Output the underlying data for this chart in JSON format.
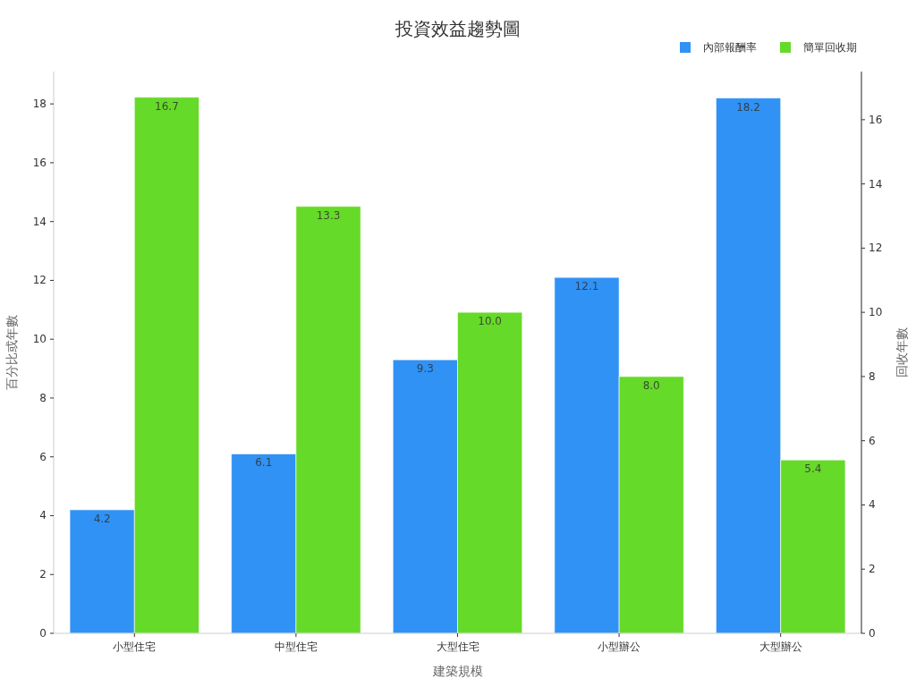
{
  "chart_data": {
    "type": "bar",
    "title": "投資效益趨勢圖",
    "xlabel": "建築規模",
    "ylabel": "百分比或年數",
    "y2label": "回收年數",
    "categories": [
      "小型住宅",
      "中型住宅",
      "大型住宅",
      "小型辦公",
      "大型辦公"
    ],
    "series": [
      {
        "name": "內部報酬率",
        "color": "#3092f5",
        "values": [
          4.2,
          6.1,
          9.3,
          12.1,
          18.2
        ],
        "value_labels": [
          "4.2",
          "6.1",
          "9.3",
          "12.1",
          "18.2"
        ]
      },
      {
        "name": "簡單回收期",
        "color": "#66da28",
        "axis": "y2",
        "values": [
          16.7,
          13.3,
          10.0,
          8.0,
          5.4
        ],
        "value_labels": [
          "16.7",
          "13.3",
          "10.0",
          "8.0",
          "5.4"
        ]
      }
    ],
    "ylim": [
      0,
      19.1
    ],
    "yticks": [
      0,
      2,
      4,
      6,
      8,
      10,
      12,
      14,
      16,
      18
    ],
    "y2lim": [
      0,
      17.5
    ],
    "y2ticks": [
      0,
      2,
      4,
      6,
      8,
      10,
      12,
      14,
      16
    ],
    "legend": "top right"
  }
}
